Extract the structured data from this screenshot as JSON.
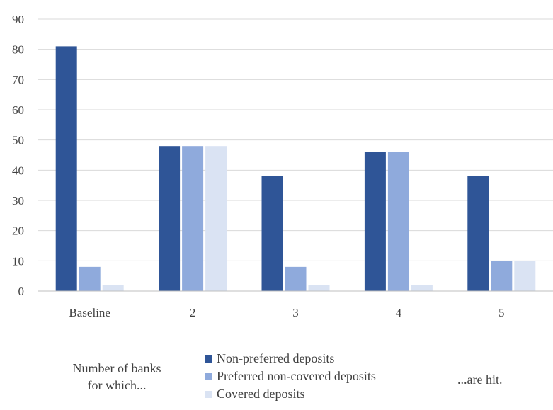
{
  "chart_data": {
    "type": "bar",
    "categories": [
      "Baseline",
      "2",
      "3",
      "4",
      "5"
    ],
    "series": [
      {
        "name": "Non-preferred deposits",
        "color": "#2F5597",
        "values": [
          81,
          48,
          38,
          46,
          38
        ]
      },
      {
        "name": "Preferred non-covered deposits",
        "color": "#8FAADC",
        "values": [
          8,
          48,
          8,
          46,
          10
        ]
      },
      {
        "name": "Covered deposits",
        "color": "#DAE3F3",
        "values": [
          2,
          48,
          2,
          2,
          10
        ]
      }
    ],
    "ylim": [
      0,
      90
    ],
    "yticks": [
      0,
      10,
      20,
      30,
      40,
      50,
      60,
      70,
      80,
      90
    ],
    "grid": true,
    "legend_position": "bottom-center"
  },
  "footer": {
    "left_line1": "Number of banks",
    "left_line2": "for which...",
    "right": "...are hit."
  }
}
